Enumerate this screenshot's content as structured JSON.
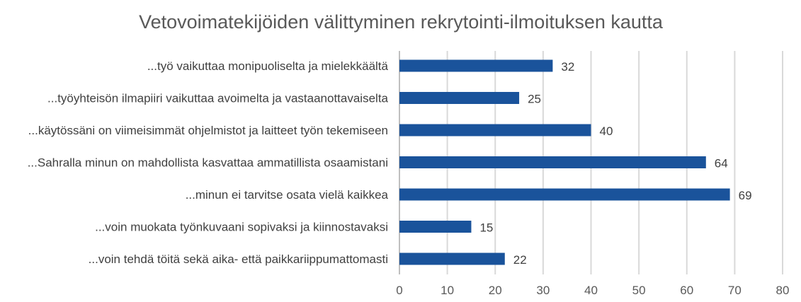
{
  "chart_data": {
    "type": "bar",
    "orientation": "horizontal",
    "title": "Vetovoimatekijöiden välittyminen rekrytointi-ilmoituksen kautta",
    "categories": [
      "...työ vaikuttaa monipuoliselta ja mielekkäältä",
      "...työyhteisön ilmapiiri vaikuttaa avoimelta ja vastaanottavaiselta",
      "...käytössäni on viimeisimmät ohjelmistot ja laitteet työn tekemiseen",
      "...Sahralla minun on mahdollista kasvattaa ammatillista osaamistani",
      "...minun ei tarvitse osata vielä kaikkea",
      "...voin muokata työnkuvaani sopivaksi ja kiinnostavaksi",
      "...voin tehdä töitä sekä aika- että paikkariippumattomasti"
    ],
    "values": [
      32,
      25,
      40,
      64,
      69,
      15,
      22
    ],
    "xlim": [
      0,
      80
    ],
    "xticks": [
      0,
      10,
      20,
      30,
      40,
      50,
      60,
      70,
      80
    ],
    "xlabel": "",
    "ylabel": "",
    "grid": true,
    "legend": "none",
    "bar_color": "#1a539b"
  }
}
